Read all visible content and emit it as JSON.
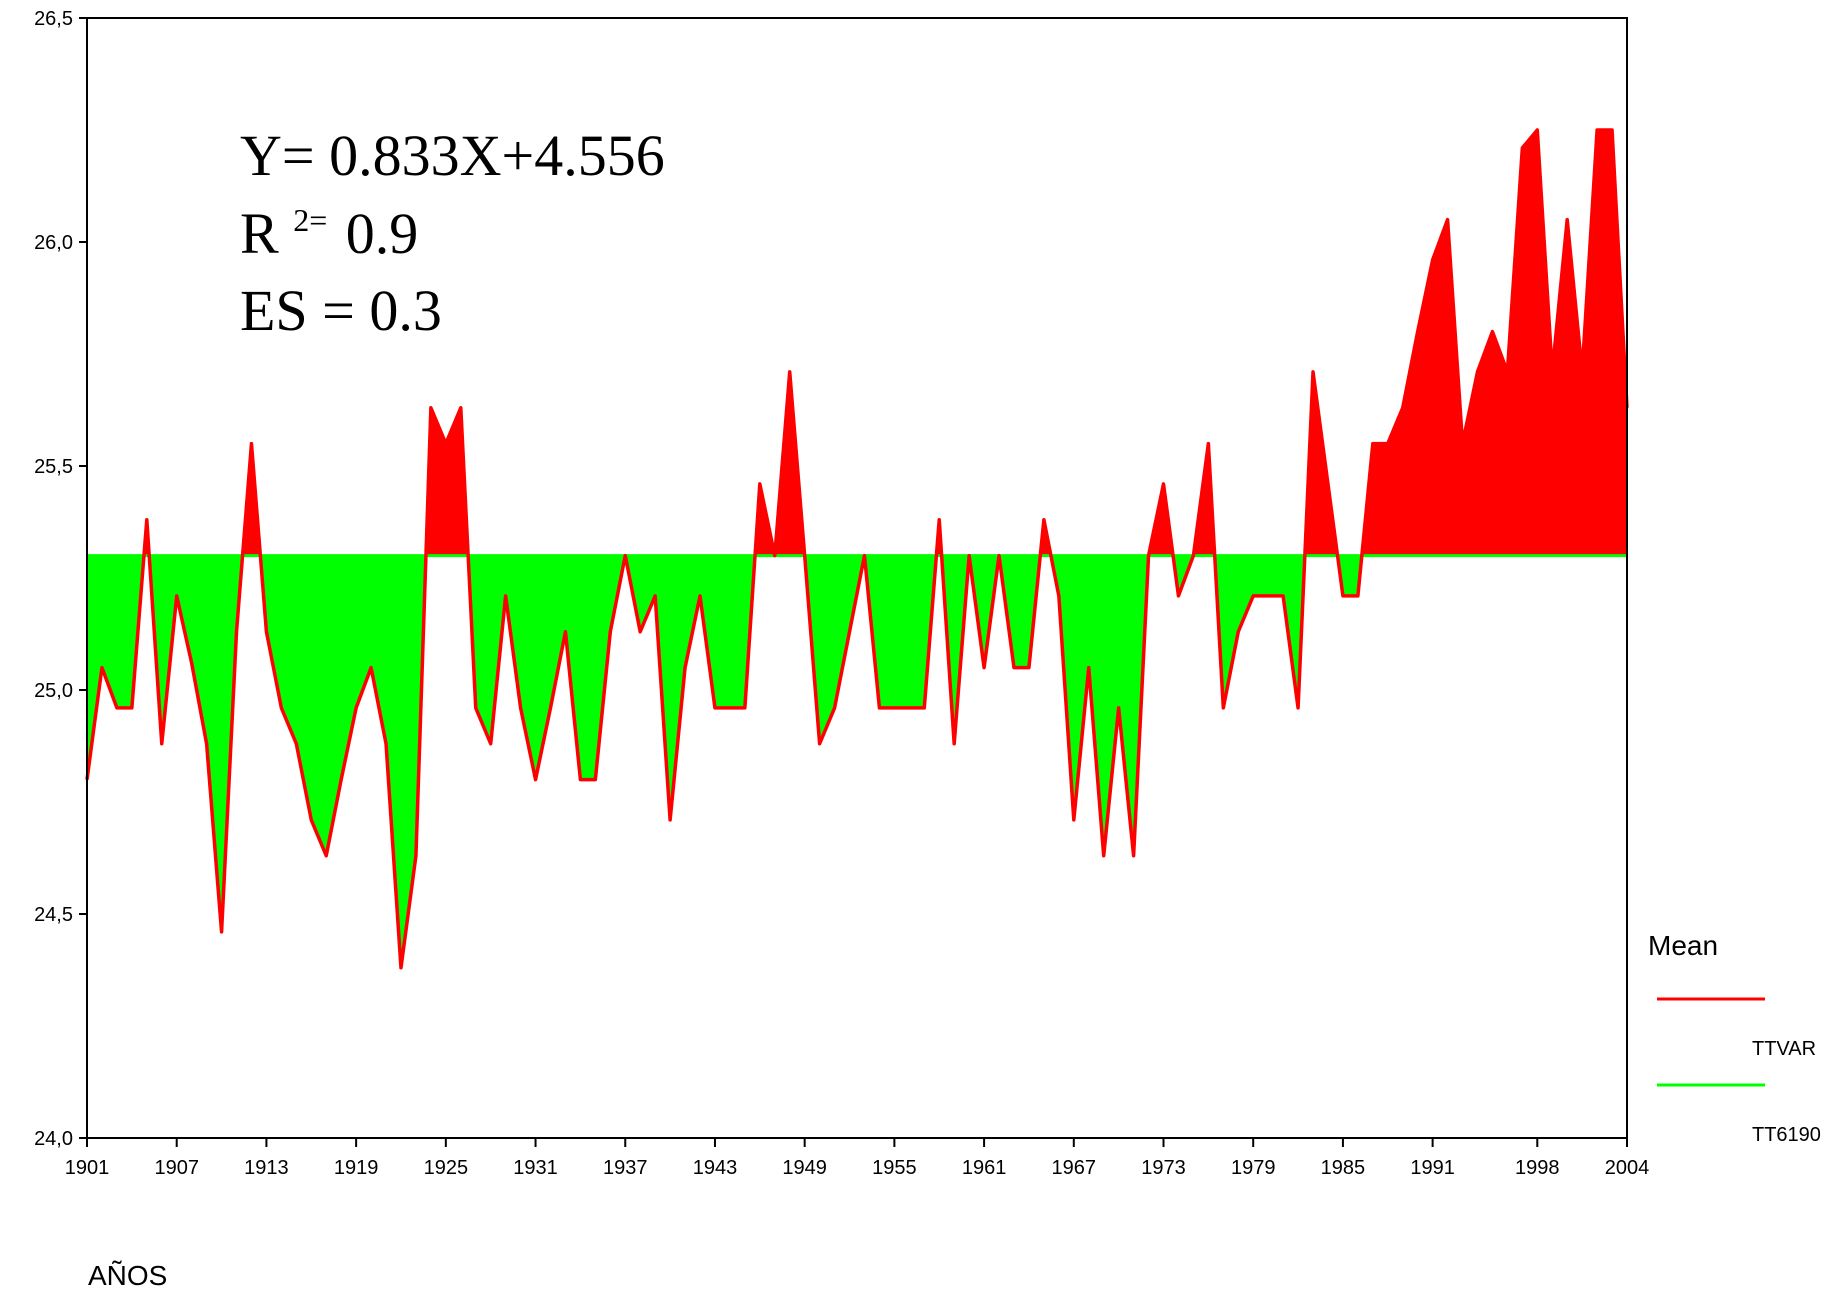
{
  "chart_data": {
    "type": "area",
    "xlabel": "AÑOS",
    "ylabel": "",
    "ylim": [
      24.0,
      26.5
    ],
    "xlim": [
      1901,
      2004
    ],
    "y_ticks": [
      "24,0",
      "24,5",
      "25,0",
      "25,5",
      "26,0",
      "26,5"
    ],
    "y_tick_values": [
      24.0,
      24.5,
      25.0,
      25.5,
      26.0,
      26.5
    ],
    "x_ticks": [
      "1901",
      "1907",
      "1913",
      "1919",
      "1925",
      "1931",
      "1937",
      "1943",
      "1949",
      "1955",
      "1961",
      "1967",
      "1973",
      "1979",
      "1985",
      "1991",
      "1998",
      "2004"
    ],
    "x_tick_values": [
      1901,
      1907,
      1913,
      1919,
      1925,
      1931,
      1937,
      1943,
      1949,
      1955,
      1961,
      1967,
      1973,
      1979,
      1985,
      1991,
      1998,
      2004
    ],
    "grid": false,
    "legend": {
      "title": "Mean",
      "position": "right",
      "entries": [
        {
          "name": "TTVAR",
          "color": "#ff0000"
        },
        {
          "name": "TT6190",
          "color": "#00ff00"
        }
      ]
    },
    "annotations": {
      "line1": "Y= 0.833X+4.556",
      "line2_base": "R",
      "line2_sup": "2=",
      "line2_value": "0.9",
      "line3": "ES = 0.3"
    },
    "colors": {
      "above": "#ff0000",
      "below": "#00ff00",
      "line": "#ff0000"
    },
    "series": [
      {
        "name": "TT6190",
        "type": "baseline",
        "value": 25.3
      },
      {
        "name": "TTVAR",
        "x": [
          1901,
          1902,
          1903,
          1904,
          1905,
          1906,
          1907,
          1908,
          1909,
          1910,
          1911,
          1912,
          1913,
          1914,
          1915,
          1916,
          1917,
          1918,
          1919,
          1920,
          1921,
          1922,
          1923,
          1924,
          1925,
          1926,
          1927,
          1928,
          1929,
          1930,
          1931,
          1932,
          1933,
          1934,
          1935,
          1936,
          1937,
          1938,
          1939,
          1940,
          1941,
          1942,
          1943,
          1944,
          1945,
          1946,
          1947,
          1948,
          1949,
          1950,
          1951,
          1952,
          1953,
          1954,
          1955,
          1956,
          1957,
          1958,
          1959,
          1960,
          1961,
          1962,
          1963,
          1964,
          1965,
          1966,
          1967,
          1968,
          1969,
          1970,
          1971,
          1972,
          1973,
          1974,
          1975,
          1976,
          1977,
          1978,
          1979,
          1980,
          1981,
          1982,
          1983,
          1984,
          1985,
          1986,
          1987,
          1988,
          1989,
          1990,
          1991,
          1992,
          1993,
          1994,
          1995,
          1996,
          1997,
          1998,
          1999,
          2000,
          2001,
          2002,
          2003,
          2004
        ],
        "values": [
          24.8,
          25.05,
          24.96,
          24.96,
          25.38,
          24.88,
          25.21,
          25.06,
          24.88,
          24.46,
          25.13,
          25.55,
          25.13,
          24.96,
          24.88,
          24.71,
          24.63,
          24.8,
          24.96,
          25.05,
          24.88,
          24.38,
          24.63,
          25.63,
          25.55,
          25.63,
          24.96,
          24.88,
          25.21,
          24.96,
          24.8,
          24.96,
          25.13,
          24.8,
          24.8,
          25.13,
          25.3,
          25.13,
          25.21,
          24.71,
          25.05,
          25.21,
          24.96,
          24.96,
          24.96,
          25.46,
          25.3,
          25.71,
          25.3,
          24.88,
          24.96,
          25.13,
          25.3,
          24.96,
          24.96,
          24.96,
          24.96,
          25.38,
          24.88,
          25.3,
          25.05,
          25.3,
          25.05,
          25.05,
          25.38,
          25.21,
          24.71,
          25.05,
          24.63,
          24.96,
          24.63,
          25.3,
          25.46,
          25.21,
          25.3,
          25.55,
          24.96,
          25.13,
          25.21,
          25.21,
          25.21,
          24.96,
          25.71,
          25.46,
          25.21,
          25.21,
          25.55,
          25.55,
          25.63,
          25.8,
          25.96,
          26.05,
          25.55,
          25.71,
          25.8,
          25.71,
          26.21,
          26.25,
          25.71,
          26.05,
          25.71,
          26.25,
          26.25,
          25.63
        ]
      }
    ]
  }
}
